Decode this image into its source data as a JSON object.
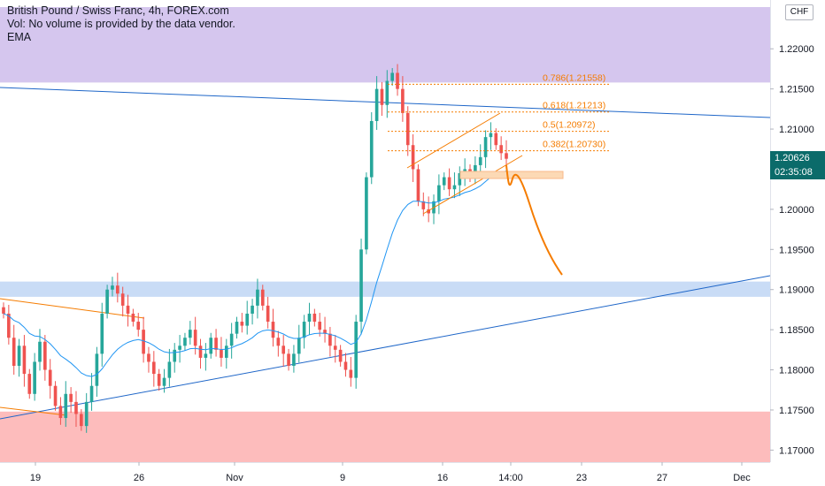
{
  "header": {
    "title": "British Pound / Swiss Franc, 4h, FOREX.com",
    "volume_note": "Vol: No volume is provided by the data vendor.",
    "indicator": "EMA"
  },
  "currency_button": "CHF",
  "price_labels": {
    "current": "1.20626",
    "countdown": "02:35:08"
  },
  "colors": {
    "up": "#26a69a",
    "down": "#ef5350",
    "ema": "#2196f3",
    "trend": "#1e66c8",
    "fib": "#f57c00",
    "resistance_zone": "#d5c6ee",
    "support_zone": "#c9dcf6",
    "demand_zone": "#fdbcbc",
    "price_box": "#0b6b6a"
  },
  "chart_data": {
    "type": "candlestick",
    "symbol": "GBPCHF",
    "timeframe": "4h",
    "ylim": [
      1.1685,
      1.2252
    ],
    "y_ticks": [
      "1.22000",
      "1.21500",
      "1.21000",
      "1.20500",
      "1.20000",
      "1.19500",
      "1.19000",
      "1.18500",
      "1.18000",
      "1.17500",
      "1.17000"
    ],
    "x_ticks": [
      "19",
      "26",
      "Nov",
      "9",
      "16",
      "14:00",
      "23",
      "27",
      "Dec"
    ],
    "fib_levels": [
      {
        "label": "0.786(1.21558)",
        "value": 1.21558
      },
      {
        "label": "0.618(1.21213)",
        "value": 1.21213
      },
      {
        "label": "0.5(1.20972)",
        "value": 1.20972
      },
      {
        "label": "0.382(1.20730)",
        "value": 1.2073
      }
    ],
    "zones": [
      {
        "name": "resistance",
        "from": 1.2158,
        "to": 1.2252
      },
      {
        "name": "support",
        "from": 1.1891,
        "to": 1.191
      },
      {
        "name": "demand",
        "from": 1.1685,
        "to": 1.1748
      }
    ],
    "closes": [
      1.187,
      1.184,
      1.1805,
      1.183,
      1.1795,
      1.177,
      1.181,
      1.1835,
      1.18,
      1.178,
      1.1755,
      1.174,
      1.177,
      1.176,
      1.1745,
      1.173,
      1.176,
      1.178,
      1.182,
      1.187,
      1.19,
      1.1905,
      1.1895,
      1.188,
      1.187,
      1.186,
      1.185,
      1.182,
      1.181,
      1.1795,
      1.178,
      1.179,
      1.181,
      1.1825,
      1.183,
      1.184,
      1.185,
      1.183,
      1.1815,
      1.182,
      1.184,
      1.1825,
      1.1815,
      1.183,
      1.1845,
      1.186,
      1.1855,
      1.187,
      1.188,
      1.19,
      1.188,
      1.186,
      1.184,
      1.183,
      1.182,
      1.1805,
      1.182,
      1.184,
      1.186,
      1.187,
      1.186,
      1.185,
      1.1845,
      1.183,
      1.1825,
      1.181,
      1.18,
      1.179,
      1.186,
      1.195,
      1.204,
      1.211,
      1.215,
      1.213,
      1.216,
      1.217,
      1.215,
      1.212,
      1.208,
      1.205,
      1.201,
      1.2,
      1.1995,
      1.201,
      1.203,
      1.204,
      1.2025,
      1.203,
      1.2045,
      1.205,
      1.204,
      1.2055,
      1.2065,
      1.209,
      1.2095,
      1.208,
      1.207,
      1.2063
    ]
  }
}
